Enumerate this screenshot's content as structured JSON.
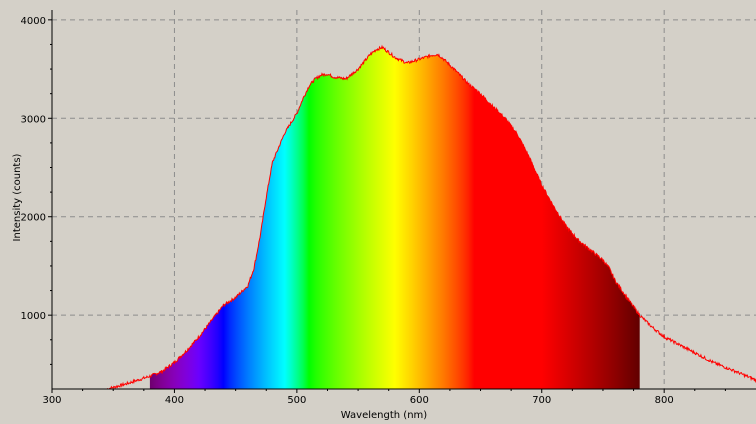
{
  "chart_data": {
    "type": "area",
    "title": "",
    "xlabel": "Wavelength (nm)",
    "ylabel": "Intensity (counts)",
    "xlim": [
      300,
      875
    ],
    "ylim": [
      250,
      4100
    ],
    "x_ticks": [
      300,
      400,
      500,
      600,
      700,
      800
    ],
    "y_ticks": [
      1000,
      2000,
      3000,
      4000
    ],
    "x_tick_labels": [
      "300",
      "400",
      "500",
      "600",
      "700",
      "800"
    ],
    "y_tick_labels": [
      "1000",
      "2000",
      "3000",
      "4000"
    ],
    "grid": true,
    "colors": {
      "background": "#d4d0c8",
      "plot_background": "#d4d0c8",
      "grid": "#8c8c8c",
      "line": "#ff0000",
      "axis": "#000000"
    },
    "fill_range": [
      380,
      780
    ],
    "series": [
      {
        "x": [
          345,
          360,
          375,
          380,
          390,
          400,
          410,
          420,
          430,
          440,
          450,
          460,
          465,
          470,
          475,
          480,
          485,
          490,
          495,
          500,
          505,
          510,
          515,
          520,
          525,
          530,
          540,
          550,
          560,
          565,
          570,
          580,
          590,
          600,
          610,
          615,
          620,
          630,
          640,
          650,
          660,
          670,
          680,
          690,
          700,
          710,
          720,
          730,
          740,
          750,
          755,
          760,
          770,
          780,
          790,
          800,
          820,
          840,
          860,
          875
        ],
        "y": [
          250,
          300,
          360,
          380,
          430,
          520,
          640,
          780,
          940,
          1100,
          1180,
          1300,
          1480,
          1800,
          2200,
          2550,
          2700,
          2850,
          2950,
          3050,
          3200,
          3330,
          3400,
          3440,
          3450,
          3420,
          3400,
          3500,
          3650,
          3700,
          3720,
          3620,
          3560,
          3600,
          3640,
          3650,
          3600,
          3480,
          3350,
          3250,
          3120,
          3000,
          2840,
          2600,
          2320,
          2100,
          1900,
          1760,
          1660,
          1560,
          1480,
          1350,
          1170,
          1000,
          880,
          780,
          650,
          520,
          420,
          340
        ]
      }
    ]
  }
}
